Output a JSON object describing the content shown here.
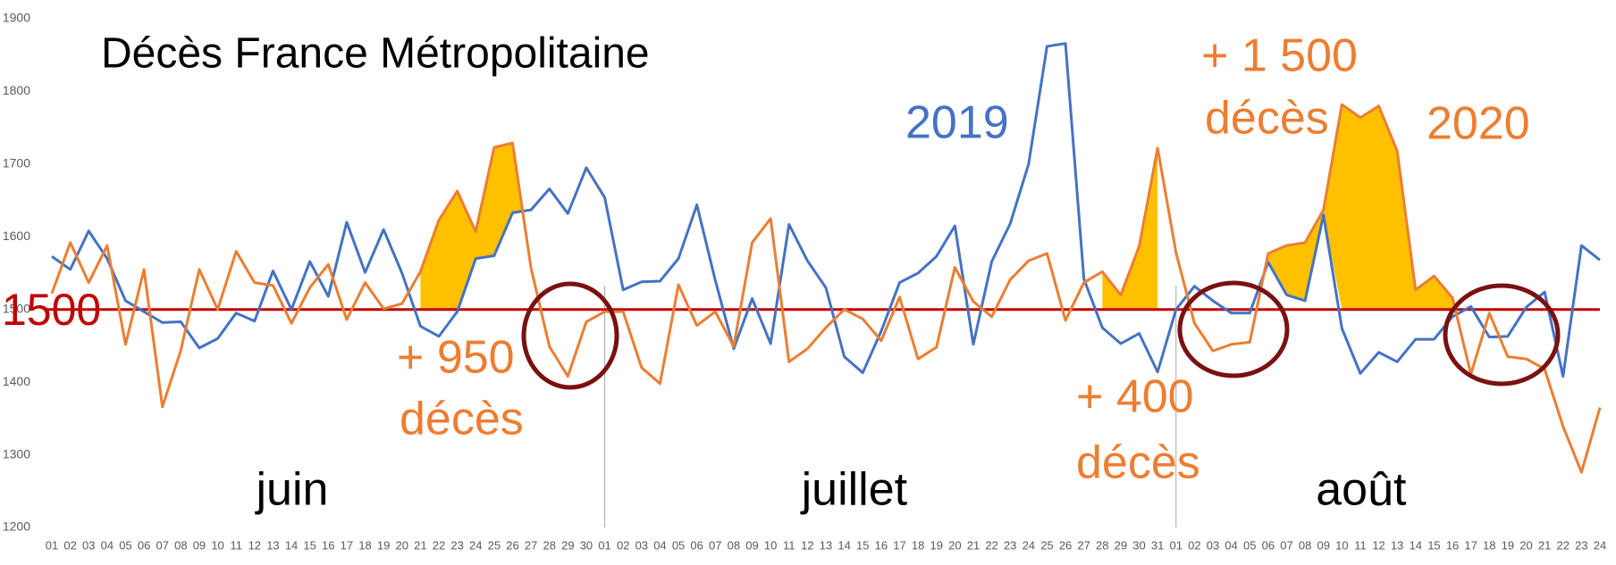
{
  "chart_data": {
    "type": "line",
    "title": "Décès France Métropolitaine",
    "categories": [
      "01",
      "02",
      "03",
      "04",
      "05",
      "06",
      "07",
      "08",
      "09",
      "10",
      "11",
      "12",
      "13",
      "14",
      "15",
      "16",
      "17",
      "18",
      "19",
      "20",
      "21",
      "22",
      "23",
      "24",
      "25",
      "26",
      "27",
      "28",
      "29",
      "30",
      "01",
      "02",
      "03",
      "04",
      "05",
      "06",
      "07",
      "08",
      "09",
      "10",
      "11",
      "12",
      "13",
      "14",
      "15",
      "16",
      "17",
      "18",
      "19",
      "20",
      "21",
      "22",
      "23",
      "24",
      "25",
      "26",
      "27",
      "28",
      "29",
      "30",
      "31",
      "01",
      "02",
      "03",
      "04",
      "05",
      "06",
      "07",
      "08",
      "09",
      "10",
      "11",
      "12",
      "13",
      "14",
      "15",
      "16",
      "17",
      "18",
      "19",
      "20",
      "21",
      "22",
      "23",
      "24"
    ],
    "month_labels": [
      "juin",
      "juillet",
      "août"
    ],
    "series": [
      {
        "name": "2019",
        "color": "#4472c4",
        "values": [
          1573,
          1555,
          1608,
          1570,
          1512,
          1497,
          1482,
          1483,
          1447,
          1460,
          1495,
          1484,
          1553,
          1500,
          1566,
          1518,
          1620,
          1551,
          1610,
          1550,
          1477,
          1463,
          1497,
          1570,
          1574,
          1633,
          1637,
          1666,
          1632,
          1695,
          1654,
          1527,
          1538,
          1539,
          1570,
          1644,
          1540,
          1446,
          1515,
          1453,
          1617,
          1567,
          1530,
          1435,
          1413,
          1470,
          1537,
          1550,
          1573,
          1615,
          1452,
          1566,
          1618,
          1700,
          1862,
          1866,
          1542,
          1475,
          1453,
          1467,
          1414,
          1500,
          1532,
          1512,
          1495,
          1495,
          1565,
          1520,
          1512,
          1630,
          1474,
          1412,
          1441,
          1428,
          1459,
          1459,
          1490,
          1504,
          1462,
          1463,
          1503,
          1524,
          1408,
          1588,
          1568
        ]
      },
      {
        "name": "2020",
        "color": "#ed7d31",
        "values": [
          1522,
          1592,
          1537,
          1588,
          1452,
          1555,
          1366,
          1444,
          1555,
          1500,
          1580,
          1537,
          1533,
          1481,
          1530,
          1562,
          1486,
          1537,
          1501,
          1508,
          1552,
          1623,
          1663,
          1607,
          1723,
          1729,
          1557,
          1449,
          1408,
          1483,
          1497,
          1497,
          1420,
          1398,
          1534,
          1478,
          1497,
          1449,
          1592,
          1625,
          1428,
          1446,
          1475,
          1500,
          1487,
          1457,
          1517,
          1432,
          1448,
          1558,
          1511,
          1490,
          1541,
          1567,
          1577,
          1485,
          1537,
          1552,
          1520,
          1587,
          1722,
          1578,
          1481,
          1443,
          1452,
          1455,
          1577,
          1588,
          1592,
          1637,
          1782,
          1764,
          1780,
          1718,
          1527,
          1546,
          1516,
          1411,
          1495,
          1435,
          1432,
          1418,
          1339,
          1276,
          1365
        ]
      }
    ],
    "reference": {
      "value": 1500,
      "color": "#c00000"
    },
    "highlights": [
      [
        20,
        26
      ],
      [
        57,
        60
      ],
      [
        66,
        76
      ]
    ],
    "highlight_color": "#ffc000",
    "annotations": [
      {
        "text": "+ 950",
        "color": "#ed7d31"
      },
      {
        "text": "décès",
        "color": "#ed7d31"
      },
      {
        "text": "+ 400",
        "color": "#ed7d31"
      },
      {
        "text": "décès",
        "color": "#ed7d31"
      },
      {
        "text": "+ 1 500",
        "color": "#ed7d31"
      },
      {
        "text": "décès",
        "color": "#ed7d31"
      }
    ],
    "ylim": [
      1200,
      1900
    ],
    "yticks": [
      1200,
      1300,
      1400,
      1500,
      1600,
      1700,
      1800,
      1900
    ]
  }
}
